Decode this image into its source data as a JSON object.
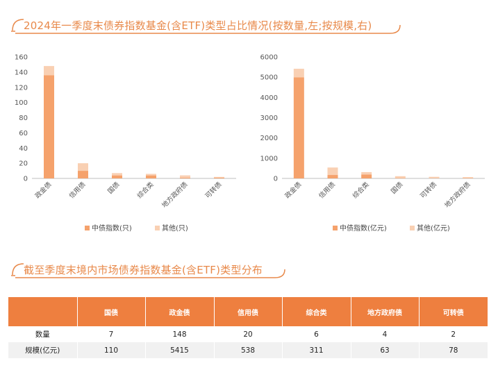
{
  "heading1": "2024年一季度末债券指数基金(含ETF)类型占比情况(按数量,左;按规模,右)",
  "heading2": "截至季度末境内市场债券指数基金(含ETF)类型分布",
  "colors": {
    "primary": "#f5a26c",
    "secondary": "#f9d0b3",
    "accent": "#e8894a",
    "header": "#ee7f3f"
  },
  "chart_data": [
    {
      "type": "bar",
      "stacked": true,
      "categories": [
        "政金债",
        "信用债",
        "国债",
        "综合类",
        "地方政府债",
        "可转债"
      ],
      "series": [
        {
          "name": "中债指数(只)",
          "values": [
            136,
            10,
            4,
            4,
            1,
            1
          ]
        },
        {
          "name": "其他(只)",
          "values": [
            12,
            10,
            3,
            2,
            3,
            1
          ]
        }
      ],
      "ylim": [
        0,
        160
      ],
      "yticks": [
        0,
        20,
        40,
        60,
        80,
        100,
        120,
        140,
        160
      ],
      "legend": "bottom"
    },
    {
      "type": "bar",
      "stacked": true,
      "categories": [
        "政金债",
        "信用债",
        "综合类",
        "国债",
        "可转债",
        "地方政府债"
      ],
      "series": [
        {
          "name": "中债指数(亿元)",
          "values": [
            4990,
            170,
            190,
            20,
            10,
            20
          ]
        },
        {
          "name": "其他(亿元)",
          "values": [
            425,
            368,
            121,
            90,
            68,
            43
          ]
        }
      ],
      "ylim": [
        0,
        6000
      ],
      "yticks": [
        0,
        1000,
        2000,
        3000,
        4000,
        5000,
        6000
      ],
      "legend": "bottom"
    }
  ],
  "table": {
    "headers": [
      "",
      "国债",
      "政金债",
      "信用债",
      "综合类",
      "地方政府债",
      "可转债"
    ],
    "rows": [
      [
        "数量",
        "7",
        "148",
        "20",
        "6",
        "4",
        "2"
      ],
      [
        "规模(亿元)",
        "110",
        "5415",
        "538",
        "311",
        "63",
        "78"
      ]
    ]
  }
}
